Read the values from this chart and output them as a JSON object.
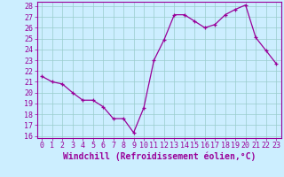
{
  "x": [
    0,
    1,
    2,
    3,
    4,
    5,
    6,
    7,
    8,
    9,
    10,
    11,
    12,
    13,
    14,
    15,
    16,
    17,
    18,
    19,
    20,
    21,
    22,
    23
  ],
  "y": [
    21.5,
    21.0,
    20.8,
    20.0,
    19.3,
    19.3,
    18.7,
    17.6,
    17.6,
    16.3,
    18.6,
    23.0,
    24.9,
    27.2,
    27.2,
    26.6,
    26.0,
    26.3,
    27.2,
    27.7,
    28.1,
    25.1,
    23.9,
    22.7
  ],
  "ylim_min": 15.8,
  "ylim_max": 28.4,
  "xlim_min": -0.5,
  "xlim_max": 23.5,
  "yticks": [
    16,
    17,
    18,
    19,
    20,
    21,
    22,
    23,
    24,
    25,
    26,
    27,
    28
  ],
  "xticks": [
    0,
    1,
    2,
    3,
    4,
    5,
    6,
    7,
    8,
    9,
    10,
    11,
    12,
    13,
    14,
    15,
    16,
    17,
    18,
    19,
    20,
    21,
    22,
    23
  ],
  "line_color": "#990099",
  "marker": "+",
  "markersize": 3.5,
  "linewidth": 0.9,
  "bg_color": "#cceeff",
  "grid_color": "#99cccc",
  "xlabel": "Windchill (Refroidissement éolien,°C)",
  "xlabel_color": "#990099",
  "tick_color": "#990099",
  "spine_color": "#990099",
  "label_fontsize": 7,
  "tick_fontsize": 6
}
